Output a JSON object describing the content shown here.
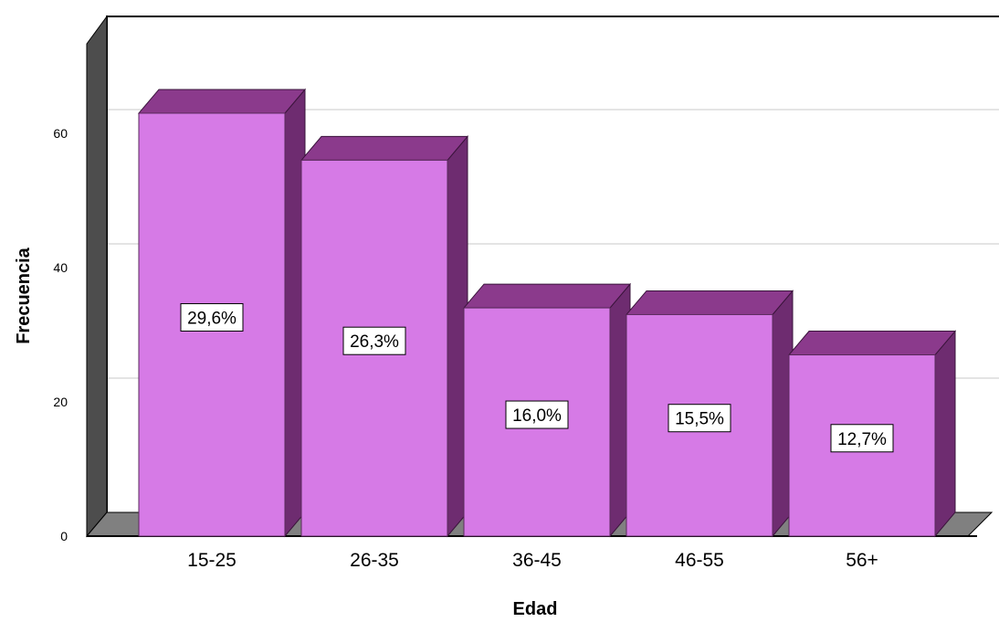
{
  "chart_data": {
    "type": "bar",
    "categories": [
      "15-25",
      "26-35",
      "36-45",
      "46-55",
      "56+"
    ],
    "values": [
      63,
      56,
      34,
      33,
      27
    ],
    "data_labels": [
      "29,6%",
      "26,3%",
      "16,0%",
      "15,5%",
      "12,7%"
    ],
    "xlabel": "Edad",
    "ylabel": "Frecuencia",
    "ylim": [
      0,
      70
    ],
    "yticks": [
      0,
      20,
      40,
      60
    ],
    "grid": true,
    "style": "3d",
    "colors": {
      "bar_front": "#d67ae6",
      "bar_top": "#8b3a8c",
      "bar_side": "#6e2c70",
      "floor": "#808080",
      "back_wall_edge": "#000000"
    }
  }
}
